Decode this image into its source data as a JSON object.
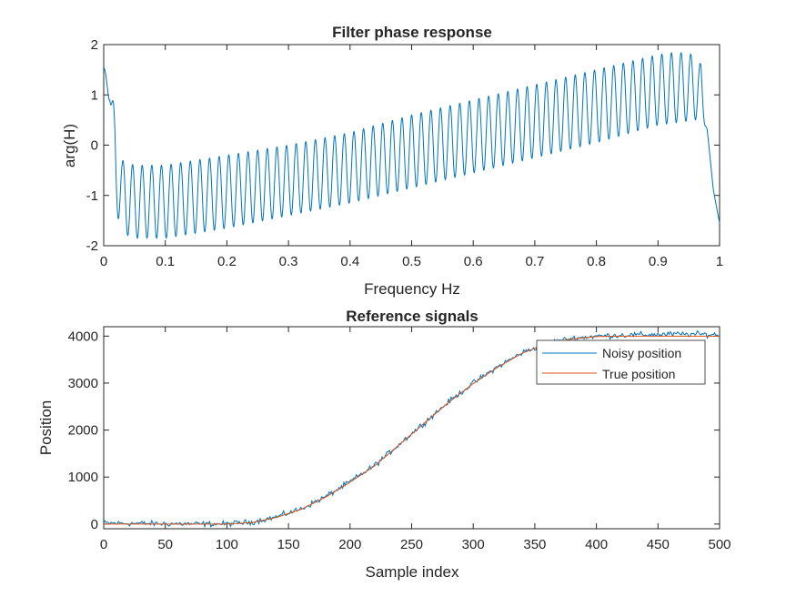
{
  "chart_data": [
    {
      "type": "line",
      "title": "Filter phase response",
      "xlabel": "Frequency Hz",
      "ylabel": "arg(H)",
      "xlim": [
        0,
        1
      ],
      "ylim": [
        -2,
        2
      ],
      "xticks": [
        "0",
        "0.1",
        "0.2",
        "0.3",
        "0.4",
        "0.5",
        "0.6",
        "0.7",
        "0.8",
        "0.9",
        "1"
      ],
      "yticks": [
        "-2",
        "-1",
        "0",
        "1",
        "2"
      ],
      "grid": false,
      "colors": {
        "line": "#0072BD"
      },
      "series": [
        {
          "oscillation_cycles": 64,
          "envelope_upper": {
            "x": [
              0.0,
              0.01,
              0.03,
              0.05,
              0.1,
              0.2,
              0.3,
              0.4,
              0.5,
              0.6,
              0.7,
              0.8,
              0.9,
              0.93,
              0.96,
              0.97,
              0.98,
              0.99,
              1.0
            ],
            "y": [
              1.55,
              1.3,
              -0.3,
              -0.4,
              -0.4,
              -0.2,
              0.0,
              0.25,
              0.6,
              0.9,
              1.2,
              1.5,
              1.8,
              1.85,
              1.8,
              1.6,
              0.3,
              -0.9,
              -1.55
            ]
          },
          "envelope_lower": {
            "x": [
              0.0,
              0.01,
              0.02,
              0.03,
              0.05,
              0.1,
              0.2,
              0.3,
              0.4,
              0.5,
              0.6,
              0.7,
              0.8,
              0.9,
              0.93,
              0.96,
              0.97,
              0.98,
              0.99,
              1.0
            ],
            "y": [
              1.55,
              0.8,
              -1.3,
              -1.75,
              -1.85,
              -1.85,
              -1.65,
              -1.4,
              -1.15,
              -0.85,
              -0.55,
              -0.25,
              0.05,
              0.4,
              0.45,
              0.5,
              0.55,
              0.3,
              -0.9,
              -1.55
            ]
          }
        }
      ]
    },
    {
      "type": "line",
      "title": "Reference signals",
      "xlabel": "Sample index",
      "ylabel": "Position",
      "xlim": [
        0,
        500
      ],
      "ylim": [
        -100,
        4200
      ],
      "xticks": [
        "0",
        "50",
        "100",
        "150",
        "200",
        "250",
        "300",
        "350",
        "400",
        "450",
        "500"
      ],
      "yticks": [
        "0",
        "1000",
        "2000",
        "3000",
        "4000"
      ],
      "grid": false,
      "legend_placement": "top-right",
      "legend": [
        "Noisy position",
        "True position"
      ],
      "colors": {
        "noisy": "#0072BD",
        "true": "#D95319"
      },
      "series": [
        {
          "name": "Noisy position",
          "x": [
            0,
            20,
            40,
            60,
            80,
            100,
            120,
            140,
            160,
            180,
            200,
            220,
            240,
            260,
            280,
            300,
            320,
            340,
            360,
            380,
            400,
            420,
            440,
            460,
            480,
            500
          ],
          "y": [
            20,
            15,
            10,
            5,
            0,
            5,
            40,
            150,
            320,
            580,
            900,
            1250,
            1700,
            2150,
            2600,
            3000,
            3350,
            3650,
            3850,
            3950,
            4000,
            4020,
            4030,
            4040,
            4040,
            4030
          ],
          "noise_amplitude": 45
        },
        {
          "name": "True position",
          "x": [
            0,
            20,
            40,
            60,
            80,
            100,
            120,
            140,
            160,
            180,
            200,
            220,
            240,
            260,
            280,
            300,
            320,
            340,
            360,
            380,
            400,
            420,
            440,
            460,
            480,
            500
          ],
          "y": [
            0,
            0,
            0,
            0,
            0,
            0,
            30,
            140,
            310,
            570,
            890,
            1240,
            1690,
            2140,
            2590,
            2990,
            3340,
            3640,
            3840,
            3940,
            3990,
            4000,
            4000,
            4000,
            4000,
            4000
          ]
        }
      ]
    }
  ]
}
